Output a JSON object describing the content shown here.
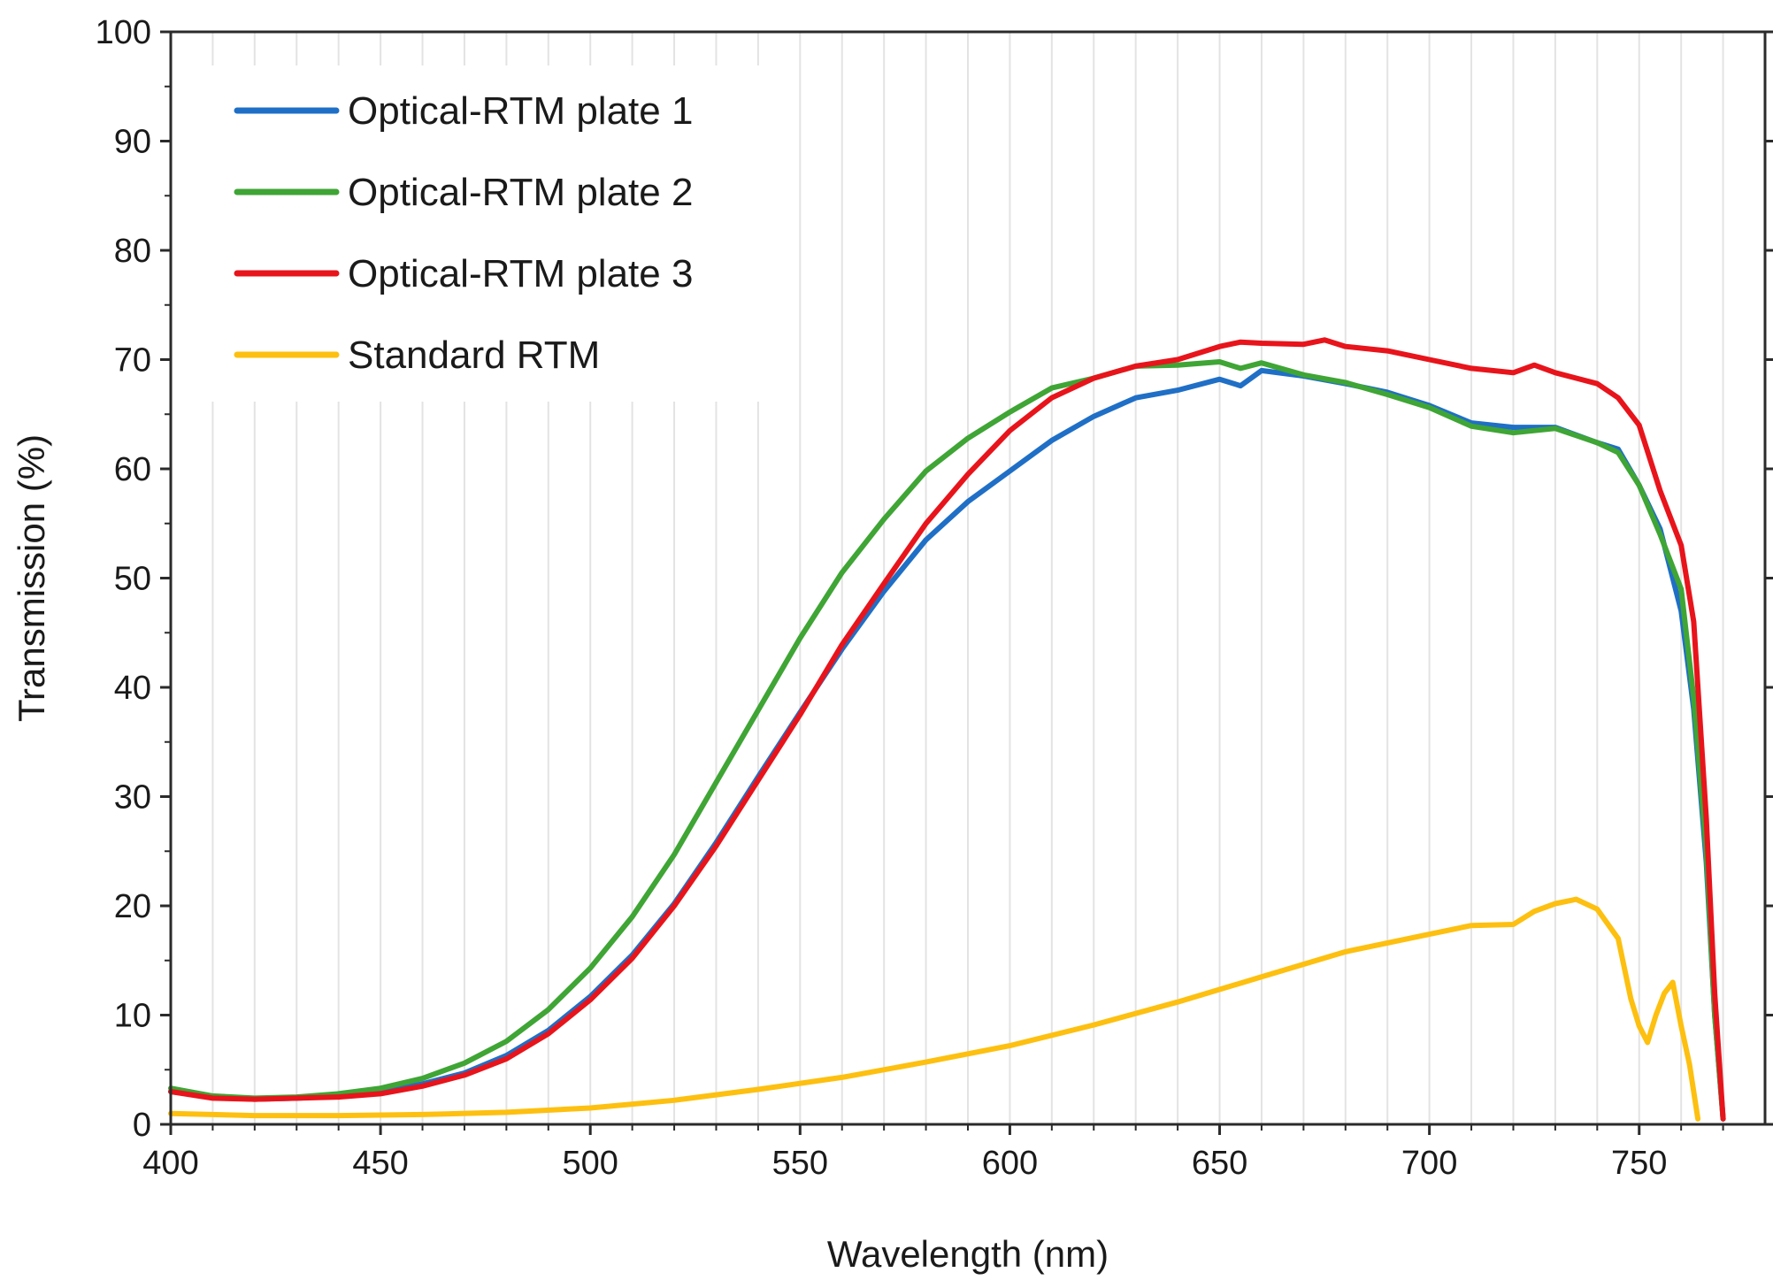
{
  "chart_data": {
    "type": "line",
    "title": "",
    "xlabel": "Wavelength (nm)",
    "ylabel": "Transmission (%)",
    "xlim": [
      400,
      780
    ],
    "ylim": [
      0,
      100
    ],
    "xticks": [
      400,
      450,
      500,
      550,
      600,
      650,
      700,
      750
    ],
    "yticks": [
      0,
      10,
      20,
      30,
      40,
      50,
      60,
      70,
      80,
      90,
      100
    ],
    "grid": "vertical minor lines every 10 nm",
    "legend_position": "top-left",
    "series": [
      {
        "name": "Optical-RTM plate 1",
        "color": "#1f6fc6",
        "x": [
          400,
          410,
          420,
          430,
          440,
          450,
          460,
          470,
          480,
          490,
          500,
          510,
          520,
          530,
          540,
          550,
          560,
          570,
          580,
          590,
          600,
          610,
          620,
          630,
          640,
          650,
          655,
          660,
          670,
          680,
          690,
          700,
          710,
          720,
          730,
          740,
          745,
          750,
          755,
          760,
          763,
          766,
          768,
          770
        ],
        "y": [
          3.0,
          2.5,
          2.3,
          2.4,
          2.6,
          3.0,
          3.7,
          4.7,
          6.3,
          8.6,
          11.7,
          15.5,
          20.2,
          25.8,
          31.8,
          37.7,
          43.5,
          48.8,
          53.5,
          57.0,
          59.8,
          62.6,
          64.8,
          66.5,
          67.2,
          68.2,
          67.6,
          69.0,
          68.5,
          67.8,
          67.0,
          65.8,
          64.2,
          63.8,
          63.8,
          62.4,
          61.8,
          58.5,
          54.5,
          47.0,
          38.0,
          24.0,
          10.0,
          0.5
        ]
      },
      {
        "name": "Optical-RTM plate 2",
        "color": "#3fa535",
        "x": [
          400,
          410,
          420,
          430,
          440,
          450,
          460,
          470,
          480,
          490,
          500,
          510,
          520,
          530,
          540,
          550,
          560,
          570,
          580,
          590,
          600,
          610,
          620,
          630,
          640,
          650,
          655,
          660,
          670,
          680,
          690,
          700,
          710,
          720,
          730,
          740,
          745,
          750,
          755,
          760,
          763,
          766,
          768,
          770
        ],
        "y": [
          3.3,
          2.6,
          2.4,
          2.5,
          2.8,
          3.3,
          4.2,
          5.6,
          7.6,
          10.5,
          14.3,
          19.0,
          24.7,
          31.3,
          37.9,
          44.5,
          50.5,
          55.4,
          59.8,
          62.8,
          65.2,
          67.4,
          68.3,
          69.4,
          69.5,
          69.8,
          69.2,
          69.7,
          68.6,
          67.9,
          66.8,
          65.6,
          63.9,
          63.3,
          63.7,
          62.4,
          61.5,
          58.5,
          54.0,
          49.0,
          39.0,
          25.0,
          10.0,
          0.5
        ]
      },
      {
        "name": "Optical-RTM plate 3",
        "color": "#e8141b",
        "x": [
          400,
          410,
          420,
          430,
          440,
          450,
          460,
          470,
          480,
          490,
          500,
          510,
          520,
          530,
          540,
          550,
          560,
          570,
          580,
          590,
          600,
          610,
          620,
          630,
          640,
          650,
          655,
          660,
          670,
          675,
          680,
          690,
          700,
          710,
          720,
          725,
          730,
          740,
          745,
          750,
          755,
          760,
          763,
          766,
          768,
          770
        ],
        "y": [
          3.0,
          2.4,
          2.3,
          2.4,
          2.5,
          2.8,
          3.5,
          4.5,
          6.0,
          8.3,
          11.4,
          15.2,
          20.0,
          25.5,
          31.5,
          37.5,
          43.9,
          49.5,
          55.0,
          59.5,
          63.5,
          66.5,
          68.3,
          69.4,
          70.0,
          71.2,
          71.6,
          71.5,
          71.4,
          71.8,
          71.2,
          70.8,
          70.0,
          69.2,
          68.8,
          69.5,
          68.8,
          67.8,
          66.5,
          64.0,
          58.0,
          53.0,
          46.0,
          28.0,
          12.0,
          0.5
        ]
      },
      {
        "name": "Standard RTM",
        "color": "#fdc010",
        "x": [
          400,
          420,
          440,
          460,
          480,
          500,
          520,
          540,
          560,
          580,
          600,
          620,
          640,
          660,
          680,
          700,
          710,
          720,
          725,
          730,
          735,
          740,
          745,
          748,
          750,
          752,
          754,
          756,
          758,
          760,
          762,
          764
        ],
        "y": [
          1.0,
          0.8,
          0.8,
          0.9,
          1.1,
          1.5,
          2.2,
          3.2,
          4.3,
          5.7,
          7.2,
          9.1,
          11.2,
          13.5,
          15.8,
          17.4,
          18.2,
          18.3,
          19.5,
          20.2,
          20.6,
          19.7,
          17.0,
          11.5,
          9.0,
          7.5,
          10.0,
          12.0,
          13.0,
          9.0,
          5.5,
          0.5
        ]
      }
    ]
  }
}
